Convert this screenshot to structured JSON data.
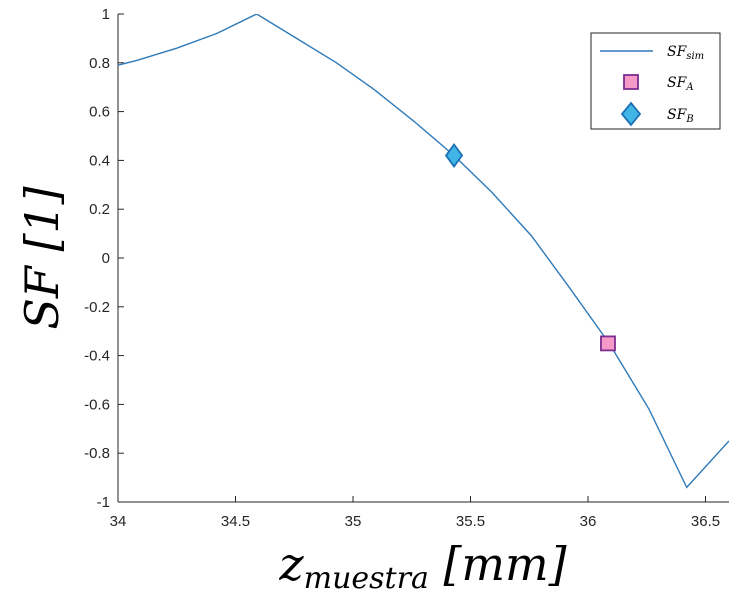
{
  "chart_data": {
    "type": "line",
    "xlabel_main": "z",
    "xlabel_sub": "muestra",
    "xlabel_unit": " [mm]",
    "ylabel": "SF [1]",
    "xlim": [
      34,
      36.6
    ],
    "ylim": [
      -1,
      1
    ],
    "xticks": [
      34,
      34.5,
      35,
      35.5,
      36,
      36.5
    ],
    "xtick_labels": [
      "34",
      "34.5",
      "35",
      "35.5",
      "36",
      "36.5"
    ],
    "yticks": [
      -1,
      -0.8,
      -0.6,
      -0.4,
      -0.2,
      0,
      0.2,
      0.4,
      0.6,
      0.8,
      1
    ],
    "ytick_labels": [
      "-1",
      "-0.8",
      "-0.6",
      "-0.4",
      "-0.2",
      "0",
      "0.2",
      "0.4",
      "0.6",
      "0.8",
      "1"
    ],
    "grid": false,
    "legend_position": "top-right",
    "colors": {
      "line": "#2f7ab8",
      "marker_a_fill": "#f59ac8",
      "marker_a_edge": "#7b2d8e",
      "marker_b_fill": "#41b6e6",
      "marker_b_edge": "#1a6fb5"
    },
    "series": [
      {
        "legend_main": "SF",
        "legend_sub": "sim",
        "type": "line",
        "x": [
          34.0,
          34.08,
          34.25,
          34.42,
          34.59,
          34.76,
          34.93,
          35.09,
          35.26,
          35.43,
          35.59,
          35.76,
          35.92,
          36.09,
          36.26,
          36.42,
          36.6
        ],
        "y": [
          0.79,
          0.81,
          0.86,
          0.92,
          1.0,
          0.9,
          0.8,
          0.69,
          0.56,
          0.42,
          0.27,
          0.09,
          -0.12,
          -0.35,
          -0.62,
          -0.94,
          -0.75
        ]
      },
      {
        "legend_main": "SF",
        "legend_sub": "A",
        "type": "marker",
        "marker": "square",
        "x": [
          36.085
        ],
        "y": [
          -0.35
        ]
      },
      {
        "legend_main": "SF",
        "legend_sub": "B",
        "type": "marker",
        "marker": "diamond",
        "x": [
          35.43
        ],
        "y": [
          0.42
        ]
      }
    ]
  }
}
